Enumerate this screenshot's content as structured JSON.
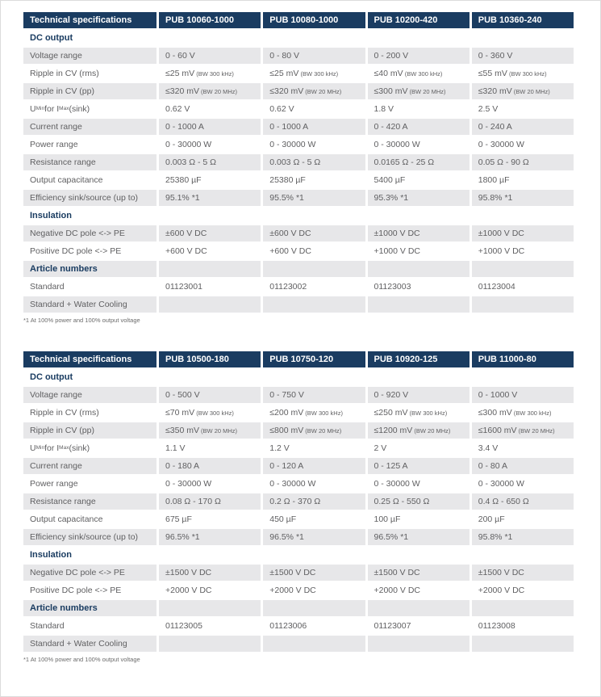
{
  "colors": {
    "header_bg": "#1a3c61",
    "header_text": "#ffffff",
    "section_text": "#1a3c61",
    "row_stripe_bg": "#e7e7e9",
    "body_text": "#5f5f61",
    "footnote_text": "#6b6b6b"
  },
  "tables": [
    {
      "corner_label": "Technical specifications",
      "columns": [
        "PUB 10060-1000",
        "PUB 10080-1000",
        "PUB 10200-420",
        "PUB 10360-240"
      ],
      "rows": [
        {
          "type": "section",
          "label": "DC output"
        },
        {
          "type": "data",
          "label": "Voltage range",
          "values": [
            "0 - 60 V",
            "0 - 80 V",
            "0 - 200 V",
            "0 - 360 V"
          ]
        },
        {
          "type": "data",
          "label": "Ripple in CV (rms)",
          "values": [
            {
              "v": "≤25 mV",
              "n": "(BW 300 kHz)"
            },
            {
              "v": "≤25 mV",
              "n": "(BW 300 kHz)"
            },
            {
              "v": "≤40 mV",
              "n": "(BW 300 kHz)"
            },
            {
              "v": "≤55 mV",
              "n": "(BW 300 kHz)"
            }
          ]
        },
        {
          "type": "data",
          "label": "Ripple in CV (pp)",
          "values": [
            {
              "v": "≤320 mV",
              "n": "(BW 20 MHz)"
            },
            {
              "v": "≤320 mV",
              "n": "(BW 20 MHz)"
            },
            {
              "v": "≤300 mV",
              "n": "(BW 20 MHz)"
            },
            {
              "v": "≤320 mV",
              "n": "(BW 20 MHz)"
            }
          ]
        },
        {
          "type": "data",
          "label": "U_{Min} for I_{Max} (sink)",
          "values": [
            "0.62 V",
            "0.62 V",
            "1.8 V",
            "2.5 V"
          ]
        },
        {
          "type": "data",
          "label": "Current range",
          "values": [
            "0 - 1000 A",
            "0 - 1000 A",
            "0 - 420 A",
            "0 - 240 A"
          ]
        },
        {
          "type": "data",
          "label": "Power range",
          "values": [
            "0 - 30000 W",
            "0 - 30000 W",
            "0 - 30000 W",
            "0 - 30000 W"
          ]
        },
        {
          "type": "data",
          "label": "Resistance range",
          "values": [
            "0.003 Ω - 5 Ω",
            "0.003 Ω - 5 Ω",
            "0.0165 Ω - 25 Ω",
            "0.05 Ω - 90 Ω"
          ]
        },
        {
          "type": "data",
          "label": "Output capacitance",
          "values": [
            "25380 µF",
            "25380 µF",
            "5400 µF",
            "1800 µF"
          ]
        },
        {
          "type": "data",
          "label": "Efficiency sink/source (up to)",
          "values": [
            "95.1% *1",
            "95.5% *1",
            "95.3% *1",
            "95.8% *1"
          ]
        },
        {
          "type": "section",
          "label": "Insulation"
        },
        {
          "type": "data",
          "label": "Negative DC pole <-> PE",
          "values": [
            "±600 V DC",
            "±600 V DC",
            "±1000 V DC",
            "±1000 V DC"
          ]
        },
        {
          "type": "data",
          "label": "Positive DC pole <-> PE",
          "values": [
            "+600 V DC",
            "+600 V DC",
            "+1000 V DC",
            "+1000 V DC"
          ]
        },
        {
          "type": "section",
          "label": "Article numbers"
        },
        {
          "type": "data",
          "label": "Standard",
          "values": [
            "01123001",
            "01123002",
            "01123003",
            "01123004"
          ]
        },
        {
          "type": "data",
          "label": "Standard + Water Cooling",
          "values": [
            "",
            "",
            "",
            ""
          ]
        }
      ],
      "footnote": "*1 At 100% power and 100% output voltage"
    },
    {
      "corner_label": "Technical specifications",
      "columns": [
        "PUB 10500-180",
        "PUB 10750-120",
        "PUB 10920-125",
        "PUB 11000-80"
      ],
      "rows": [
        {
          "type": "section",
          "label": "DC output"
        },
        {
          "type": "data",
          "label": "Voltage range",
          "values": [
            "0 - 500 V",
            "0 - 750 V",
            "0 - 920 V",
            "0 - 1000 V"
          ]
        },
        {
          "type": "data",
          "label": "Ripple in CV (rms)",
          "values": [
            {
              "v": "≤70 mV",
              "n": "(BW 300 kHz)"
            },
            {
              "v": "≤200 mV",
              "n": "(BW 300 kHz)"
            },
            {
              "v": "≤250 mV",
              "n": "(BW 300 kHz)"
            },
            {
              "v": "≤300 mV",
              "n": "(BW 300 kHz)"
            }
          ]
        },
        {
          "type": "data",
          "label": "Ripple in CV (pp)",
          "values": [
            {
              "v": "≤350 mV",
              "n": "(BW 20 MHz)"
            },
            {
              "v": "≤800 mV",
              "n": "(BW 20 MHz)"
            },
            {
              "v": "≤1200 mV",
              "n": "(BW 20 MHz)"
            },
            {
              "v": "≤1600 mV",
              "n": "(BW 20 MHz)"
            }
          ]
        },
        {
          "type": "data",
          "label": "U_{Min} for I_{Max} (sink)",
          "values": [
            "1.1 V",
            "1.2 V",
            "2 V",
            "3.4 V"
          ]
        },
        {
          "type": "data",
          "label": "Current range",
          "values": [
            "0 - 180 A",
            "0 - 120 A",
            "0 - 125 A",
            "0 - 80 A"
          ]
        },
        {
          "type": "data",
          "label": "Power range",
          "values": [
            "0 - 30000 W",
            "0 - 30000 W",
            "0 - 30000 W",
            "0 - 30000 W"
          ]
        },
        {
          "type": "data",
          "label": "Resistance range",
          "values": [
            "0.08 Ω - 170 Ω",
            "0.2 Ω - 370 Ω",
            "0.25 Ω - 550 Ω",
            "0.4 Ω - 650 Ω"
          ]
        },
        {
          "type": "data",
          "label": "Output capacitance",
          "values": [
            "675 µF",
            "450 µF",
            "100 µF",
            "200 µF"
          ]
        },
        {
          "type": "data",
          "label": "Efficiency sink/source (up to)",
          "values": [
            "96.5% *1",
            "96.5% *1",
            "96.5% *1",
            "95.8% *1"
          ]
        },
        {
          "type": "section",
          "label": "Insulation"
        },
        {
          "type": "data",
          "label": "Negative DC pole <-> PE",
          "values": [
            "±1500 V DC",
            "±1500 V DC",
            "±1500 V DC",
            "±1500 V DC"
          ]
        },
        {
          "type": "data",
          "label": "Positive DC pole <-> PE",
          "values": [
            "+2000 V DC",
            "+2000 V DC",
            "+2000 V DC",
            "+2000 V DC"
          ]
        },
        {
          "type": "section",
          "label": "Article numbers"
        },
        {
          "type": "data",
          "label": "Standard",
          "values": [
            "01123005",
            "01123006",
            "01123007",
            "01123008"
          ]
        },
        {
          "type": "data",
          "label": "Standard + Water Cooling",
          "values": [
            "",
            "",
            "",
            ""
          ]
        }
      ],
      "footnote": "*1 At 100% power and 100% output voltage"
    }
  ]
}
